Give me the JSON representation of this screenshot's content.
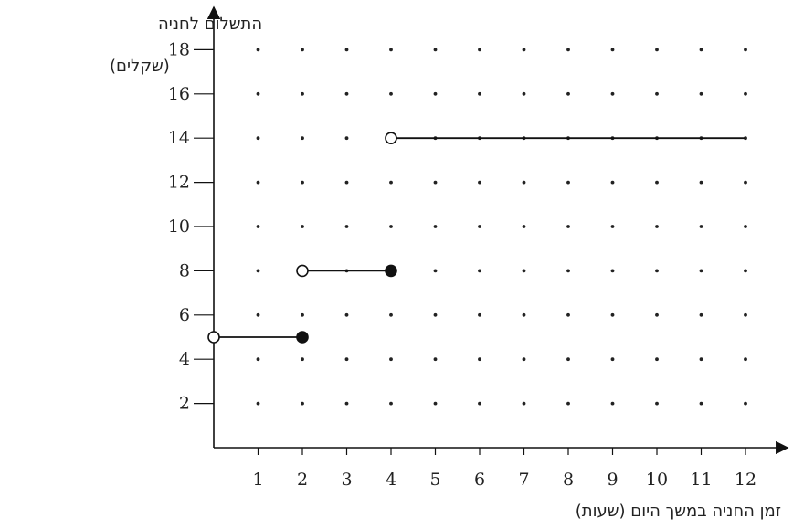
{
  "chart_data": {
    "type": "line",
    "ylabel_line1": "התשלום לחניה",
    "ylabel_line2": "(שקלים)",
    "xlabel": "זמן החניה במשך היום (שעות)",
    "xlim": [
      0,
      12
    ],
    "ylim": [
      0,
      18
    ],
    "xticks": [
      1,
      2,
      3,
      4,
      5,
      6,
      7,
      8,
      9,
      10,
      11,
      12
    ],
    "yticks": [
      2,
      4,
      6,
      8,
      10,
      12,
      14,
      16,
      18
    ],
    "dot_grid": true,
    "segments": [
      {
        "x_start": 0,
        "x_end": 2,
        "y": 5,
        "start_point": "open",
        "end_point": "closed"
      },
      {
        "x_start": 2,
        "x_end": 4,
        "y": 8,
        "start_point": "open",
        "end_point": "closed"
      },
      {
        "x_start": 4,
        "x_end": 12,
        "y": 14,
        "start_point": "open",
        "end_point": "none"
      }
    ],
    "colors": {
      "line": "#111111",
      "open_fill": "#ffffff",
      "closed_fill": "#111111",
      "grid_dot": "#222222"
    }
  }
}
